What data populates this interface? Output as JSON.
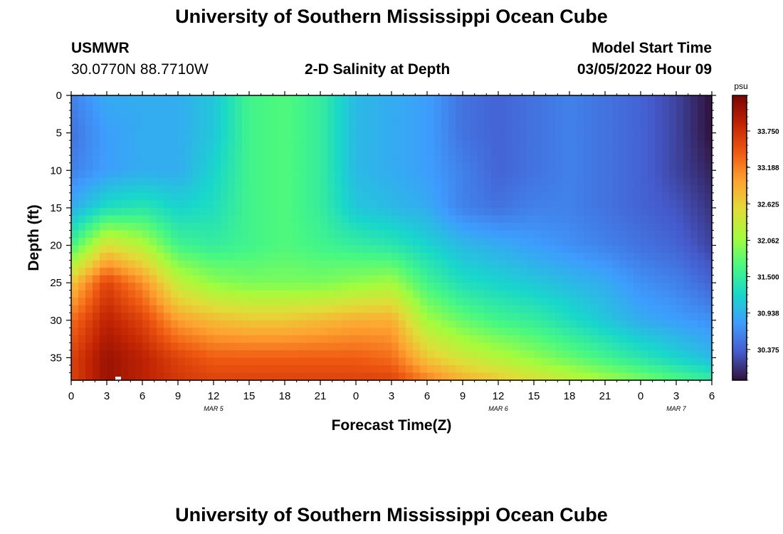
{
  "header": {
    "title": "University of Southern Mississippi Ocean Cube",
    "station_name": "USMWR",
    "station_coords": "30.0770N  88.7710W",
    "model_label": "Model Start Time",
    "model_time": "03/05/2022 Hour 09",
    "plot_title": "2-D Salinity at Depth"
  },
  "footer": {
    "title": "University of Southern Mississippi Ocean Cube"
  },
  "chart_data": {
    "type": "heatmap",
    "title": "2-D Salinity at Depth",
    "xlabel": "Forecast Time(Z)",
    "ylabel": "Depth (ft)",
    "x_tick_labels": [
      "0",
      "3",
      "6",
      "9",
      "12",
      "15",
      "18",
      "21",
      "0",
      "3",
      "6",
      "9",
      "12",
      "15",
      "18",
      "21",
      "0",
      "3",
      "6"
    ],
    "x_date_labels": [
      {
        "label": "MAR 5",
        "hours_from_start": 12
      },
      {
        "label": "MAR 6",
        "hours_from_start": 36
      },
      {
        "label": "MAR 7",
        "hours_from_start": 51
      }
    ],
    "x_range_hours": [
      0,
      54
    ],
    "y_ticks": [
      0,
      5,
      10,
      15,
      20,
      25,
      30,
      35
    ],
    "y_range_ft": [
      0,
      38
    ],
    "y_inverted": true,
    "colorbar": {
      "unit": "psu",
      "ticks": [
        "33.750",
        "33.188",
        "32.625",
        "32.062",
        "31.500",
        "30.938",
        "30.375"
      ],
      "range": [
        29.9,
        34.3
      ]
    },
    "salinity_grid": {
      "note_hours": [
        0,
        3,
        6,
        9,
        12,
        15,
        18,
        21,
        24,
        27,
        30,
        33,
        36,
        39,
        42,
        45,
        48,
        51,
        54
      ],
      "depths_ft": [
        0,
        5,
        10,
        15,
        20,
        25,
        30,
        35,
        38
      ],
      "values": [
        [
          30.6,
          30.9,
          30.9,
          30.9,
          31.1,
          31.6,
          31.7,
          31.5,
          31.0,
          30.9,
          30.8,
          30.5,
          30.4,
          30.5,
          30.6,
          30.5,
          30.4,
          30.2,
          29.9
        ],
        [
          30.5,
          30.8,
          30.9,
          30.9,
          31.1,
          31.6,
          31.7,
          31.5,
          31.0,
          30.9,
          30.8,
          30.5,
          30.4,
          30.5,
          30.6,
          30.5,
          30.4,
          30.2,
          29.9
        ],
        [
          30.6,
          30.8,
          30.9,
          30.9,
          31.2,
          31.6,
          31.7,
          31.5,
          31.0,
          30.9,
          30.8,
          30.6,
          30.4,
          30.5,
          30.6,
          30.5,
          30.4,
          30.2,
          30.0
        ],
        [
          30.9,
          31.3,
          31.4,
          31.2,
          31.3,
          31.6,
          31.7,
          31.5,
          31.1,
          31.0,
          30.9,
          30.6,
          30.5,
          30.6,
          30.6,
          30.5,
          30.4,
          30.3,
          30.1
        ],
        [
          31.6,
          32.5,
          32.2,
          31.6,
          31.5,
          31.6,
          31.7,
          31.6,
          31.5,
          31.4,
          31.2,
          31.0,
          30.9,
          30.8,
          30.7,
          30.6,
          30.5,
          30.4,
          30.2
        ],
        [
          32.7,
          33.6,
          33.1,
          32.3,
          32.0,
          31.9,
          31.9,
          31.9,
          32.0,
          32.1,
          31.6,
          31.3,
          31.2,
          31.1,
          31.0,
          30.9,
          30.7,
          30.6,
          30.4
        ],
        [
          33.3,
          33.9,
          33.6,
          33.0,
          32.8,
          32.7,
          32.7,
          32.8,
          32.9,
          32.9,
          32.1,
          31.8,
          31.6,
          31.5,
          31.3,
          31.1,
          30.9,
          30.8,
          30.7
        ],
        [
          33.6,
          34.1,
          33.9,
          33.6,
          33.4,
          33.4,
          33.4,
          33.4,
          33.4,
          33.3,
          32.7,
          32.4,
          32.2,
          32.0,
          31.8,
          31.6,
          31.4,
          31.2,
          31.0
        ],
        [
          33.6,
          34.1,
          33.9,
          33.7,
          33.6,
          33.6,
          33.6,
          33.6,
          33.6,
          33.6,
          33.2,
          32.9,
          32.7,
          32.5,
          32.3,
          32.1,
          31.9,
          31.7,
          31.5
        ]
      ]
    }
  }
}
